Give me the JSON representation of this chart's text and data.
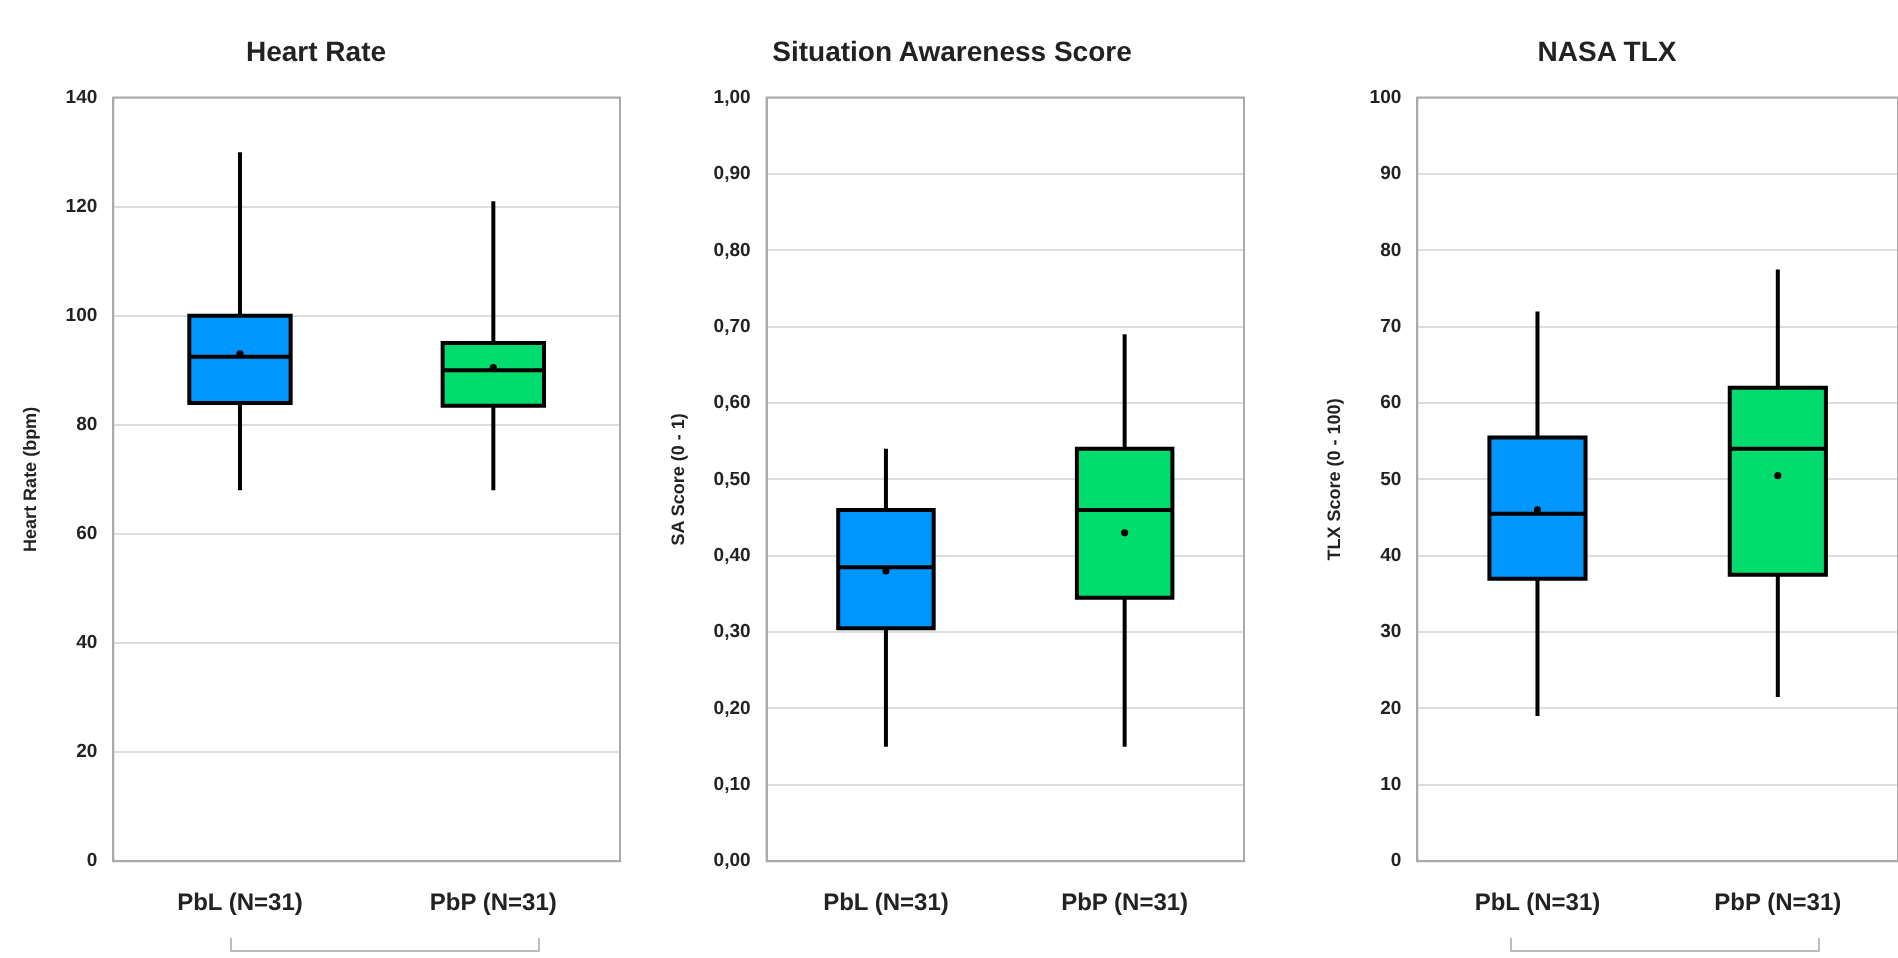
{
  "chart_data": [
    {
      "type": "box",
      "title": "Heart Rate",
      "ylabel": "Heart Rate (bpm)",
      "categories": [
        "PbL (N=31)",
        "PbP (N=31)"
      ],
      "colors": [
        "#0096ff",
        "#00dd6e"
      ],
      "boxes": [
        {
          "low": 68,
          "q1": 84,
          "median": 92.5,
          "q3": 100,
          "high": 130,
          "mean": 93
        },
        {
          "low": 68,
          "q1": 83.5,
          "median": 90,
          "q3": 95,
          "high": 121,
          "mean": 90.5
        }
      ],
      "ylim": [
        0,
        140
      ],
      "yticks": [
        0,
        20,
        40,
        60,
        80,
        100,
        120,
        140
      ],
      "grid": "y"
    },
    {
      "type": "box",
      "title": "Situation Awareness Score",
      "ylabel": "SA Score (0 - 1)",
      "categories": [
        "PbL (N=31)",
        "PbP (N=31)"
      ],
      "colors": [
        "#0096ff",
        "#00dd6e"
      ],
      "boxes": [
        {
          "low": 0.15,
          "q1": 0.305,
          "median": 0.385,
          "q3": 0.46,
          "high": 0.54,
          "mean": 0.38
        },
        {
          "low": 0.15,
          "q1": 0.345,
          "median": 0.46,
          "q3": 0.54,
          "high": 0.69,
          "mean": 0.43
        }
      ],
      "ylim": [
        0,
        1
      ],
      "yticks": [
        {
          "value": 0,
          "label": "0,00"
        },
        {
          "value": 0.1,
          "label": "0,10"
        },
        {
          "value": 0.2,
          "label": "0,20"
        },
        {
          "value": 0.3,
          "label": "0,30"
        },
        {
          "value": 0.4,
          "label": "0,40"
        },
        {
          "value": 0.5,
          "label": "0,50"
        },
        {
          "value": 0.6,
          "label": "0,60"
        },
        {
          "value": 0.7,
          "label": "0,70"
        },
        {
          "value": 0.8,
          "label": "0,80"
        },
        {
          "value": 0.9,
          "label": "0,90"
        },
        {
          "value": 1,
          "label": "1,00"
        }
      ],
      "grid": "y"
    },
    {
      "type": "box",
      "title": "NASA TLX",
      "ylabel": "TLX Score (0 - 100)",
      "categories": [
        "PbL (N=31)",
        "PbP (N=31)"
      ],
      "colors": [
        "#0096ff",
        "#00dd6e"
      ],
      "boxes": [
        {
          "low": 19,
          "q1": 37,
          "median": 45.5,
          "q3": 55.5,
          "high": 72,
          "mean": 46
        },
        {
          "low": 21.5,
          "q1": 37.5,
          "median": 54,
          "q3": 62,
          "high": 77.5,
          "mean": 50.5
        }
      ],
      "ylim": [
        0,
        100
      ],
      "yticks": [
        0,
        10,
        20,
        30,
        40,
        50,
        60,
        70,
        80,
        90,
        100
      ],
      "grid": "y"
    }
  ]
}
